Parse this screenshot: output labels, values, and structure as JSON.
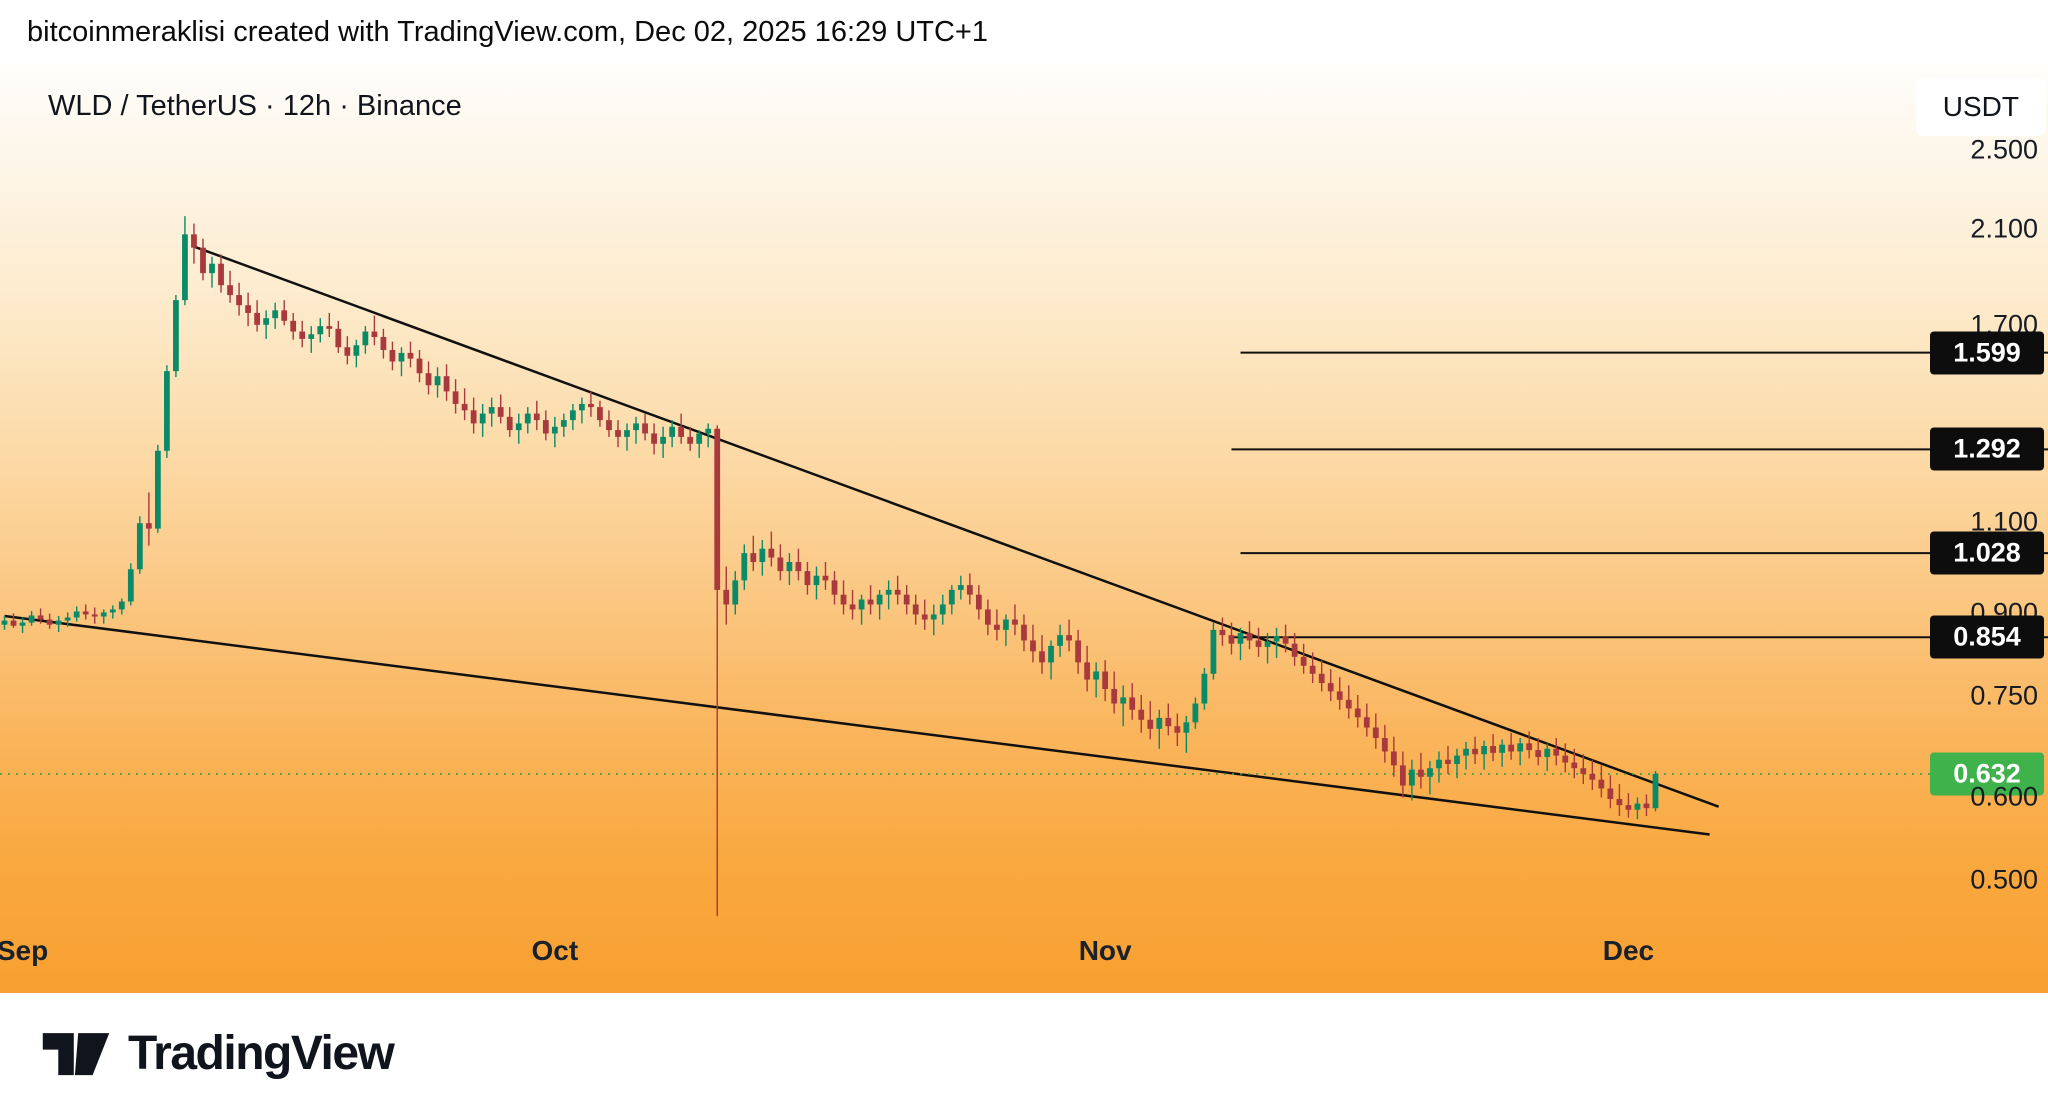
{
  "attribution": "bitcoinmeraklisi created with TradingView.com, Dec 02, 2025 16:29 UTC+1",
  "symbol_line": "WLD / TetherUS · 12h · Binance",
  "currency_button": "USDT",
  "logo_text": "TradingView",
  "colors": {
    "up": "#0b8a68",
    "down": "#a8393c",
    "line": "#111111",
    "current_line": "#3a9e46",
    "badge_bg": "#0d0d0d",
    "badge_text": "#ffffff",
    "current_badge_bg": "#3fb24b",
    "bg_top": "#fffefb",
    "bg_bottom": "#f8a031",
    "text_dark": "#10141c"
  },
  "chart_data": {
    "type": "candlestick",
    "title": "WLD / TetherUS",
    "interval": "12h",
    "exchange": "Binance",
    "quote_unit": "USDT",
    "scale": "log",
    "grid": false,
    "price_range": {
      "min": 0.39,
      "max": 3.02
    },
    "current_price": 0.632,
    "y_axis": {
      "ticks": [
        {
          "price": 2.5,
          "label": "2.500",
          "style": "plain"
        },
        {
          "price": 2.1,
          "label": "2.100",
          "style": "plain"
        },
        {
          "price": 1.7,
          "label": "1.700",
          "style": "plain"
        },
        {
          "price": 1.599,
          "label": "1.599",
          "style": "level"
        },
        {
          "price": 1.292,
          "label": "1.292",
          "style": "level"
        },
        {
          "price": 1.1,
          "label": "1.100",
          "style": "plain"
        },
        {
          "price": 1.028,
          "label": "1.028",
          "style": "level"
        },
        {
          "price": 0.9,
          "label": "0.900",
          "style": "plain"
        },
        {
          "price": 0.854,
          "label": "0.854",
          "style": "level"
        },
        {
          "price": 0.75,
          "label": "0.750",
          "style": "plain"
        },
        {
          "price": 0.632,
          "label": "0.632",
          "style": "current"
        },
        {
          "price": 0.6,
          "label": "0.600",
          "style": "plain"
        },
        {
          "price": 0.5,
          "label": "0.500",
          "style": "plain"
        }
      ]
    },
    "x_axis": {
      "ticks": [
        {
          "label": "Sep",
          "index": 2
        },
        {
          "label": "Oct",
          "index": 61
        },
        {
          "label": "Nov",
          "index": 122
        },
        {
          "label": "Dec",
          "index": 180
        }
      ]
    },
    "levels": [
      {
        "price": 1.599,
        "from_index": 137
      },
      {
        "price": 1.292,
        "from_index": 136
      },
      {
        "price": 1.028,
        "from_index": 137
      },
      {
        "price": 0.854,
        "from_index": 136
      }
    ],
    "trendlines": [
      {
        "name": "upper-wedge-line",
        "from": {
          "index": 21,
          "price": 2.02
        },
        "to": {
          "index": 190,
          "price": 0.588
        }
      },
      {
        "name": "lower-wedge-line",
        "from": {
          "index": 0,
          "price": 0.895
        },
        "to": {
          "index": 189,
          "price": 0.553
        }
      }
    ],
    "candles": [
      [
        0.878,
        0.895,
        0.868,
        0.886
      ],
      [
        0.886,
        0.9,
        0.872,
        0.876
      ],
      [
        0.876,
        0.892,
        0.862,
        0.882
      ],
      [
        0.882,
        0.905,
        0.876,
        0.896
      ],
      [
        0.896,
        0.91,
        0.88,
        0.888
      ],
      [
        0.888,
        0.9,
        0.87,
        0.878
      ],
      [
        0.878,
        0.895,
        0.864,
        0.886
      ],
      [
        0.886,
        0.902,
        0.874,
        0.892
      ],
      [
        0.892,
        0.914,
        0.884,
        0.904
      ],
      [
        0.904,
        0.918,
        0.888,
        0.898
      ],
      [
        0.898,
        0.912,
        0.88,
        0.894
      ],
      [
        0.894,
        0.908,
        0.88,
        0.902
      ],
      [
        0.902,
        0.916,
        0.89,
        0.908
      ],
      [
        0.908,
        0.93,
        0.898,
        0.924
      ],
      [
        0.924,
        1.005,
        0.916,
        0.992
      ],
      [
        0.992,
        1.115,
        0.982,
        1.098
      ],
      [
        1.098,
        1.175,
        1.045,
        1.085
      ],
      [
        1.085,
        1.305,
        1.075,
        1.288
      ],
      [
        1.288,
        1.555,
        1.268,
        1.535
      ],
      [
        1.535,
        1.815,
        1.515,
        1.795
      ],
      [
        1.795,
        2.16,
        1.775,
        2.075
      ],
      [
        2.075,
        2.125,
        1.945,
        2.015
      ],
      [
        2.015,
        2.055,
        1.875,
        1.905
      ],
      [
        1.905,
        1.975,
        1.845,
        1.945
      ],
      [
        1.945,
        1.985,
        1.825,
        1.855
      ],
      [
        1.855,
        1.915,
        1.785,
        1.815
      ],
      [
        1.815,
        1.865,
        1.735,
        1.775
      ],
      [
        1.775,
        1.825,
        1.695,
        1.745
      ],
      [
        1.745,
        1.795,
        1.675,
        1.7
      ],
      [
        1.7,
        1.755,
        1.648,
        1.725
      ],
      [
        1.725,
        1.785,
        1.685,
        1.755
      ],
      [
        1.755,
        1.795,
        1.698,
        1.715
      ],
      [
        1.715,
        1.745,
        1.645,
        1.675
      ],
      [
        1.675,
        1.715,
        1.618,
        1.648
      ],
      [
        1.648,
        1.695,
        1.598,
        1.665
      ],
      [
        1.665,
        1.725,
        1.635,
        1.695
      ],
      [
        1.695,
        1.745,
        1.655,
        1.685
      ],
      [
        1.685,
        1.715,
        1.598,
        1.618
      ],
      [
        1.618,
        1.658,
        1.558,
        1.588
      ],
      [
        1.588,
        1.645,
        1.548,
        1.625
      ],
      [
        1.625,
        1.695,
        1.595,
        1.675
      ],
      [
        1.675,
        1.735,
        1.625,
        1.655
      ],
      [
        1.655,
        1.685,
        1.578,
        1.608
      ],
      [
        1.608,
        1.638,
        1.538,
        1.568
      ],
      [
        1.568,
        1.618,
        1.518,
        1.598
      ],
      [
        1.598,
        1.638,
        1.548,
        1.578
      ],
      [
        1.578,
        1.608,
        1.498,
        1.528
      ],
      [
        1.528,
        1.568,
        1.458,
        1.488
      ],
      [
        1.488,
        1.548,
        1.448,
        1.518
      ],
      [
        1.518,
        1.558,
        1.438,
        1.468
      ],
      [
        1.468,
        1.508,
        1.398,
        1.428
      ],
      [
        1.428,
        1.478,
        1.378,
        1.408
      ],
      [
        1.408,
        1.448,
        1.338,
        1.368
      ],
      [
        1.368,
        1.428,
        1.328,
        1.398
      ],
      [
        1.398,
        1.448,
        1.358,
        1.418
      ],
      [
        1.418,
        1.458,
        1.368,
        1.388
      ],
      [
        1.388,
        1.418,
        1.328,
        1.348
      ],
      [
        1.348,
        1.398,
        1.308,
        1.368
      ],
      [
        1.368,
        1.418,
        1.338,
        1.398
      ],
      [
        1.398,
        1.438,
        1.348,
        1.378
      ],
      [
        1.378,
        1.408,
        1.318,
        1.338
      ],
      [
        1.338,
        1.388,
        1.298,
        1.358
      ],
      [
        1.358,
        1.398,
        1.328,
        1.378
      ],
      [
        1.378,
        1.428,
        1.348,
        1.408
      ],
      [
        1.408,
        1.448,
        1.368,
        1.428
      ],
      [
        1.428,
        1.468,
        1.388,
        1.418
      ],
      [
        1.418,
        1.438,
        1.358,
        1.378
      ],
      [
        1.378,
        1.408,
        1.328,
        1.348
      ],
      [
        1.348,
        1.378,
        1.298,
        1.328
      ],
      [
        1.328,
        1.368,
        1.288,
        1.348
      ],
      [
        1.348,
        1.388,
        1.308,
        1.368
      ],
      [
        1.368,
        1.398,
        1.318,
        1.338
      ],
      [
        1.338,
        1.368,
        1.278,
        1.308
      ],
      [
        1.308,
        1.358,
        1.268,
        1.328
      ],
      [
        1.328,
        1.378,
        1.298,
        1.358
      ],
      [
        1.358,
        1.398,
        1.308,
        1.328
      ],
      [
        1.328,
        1.358,
        1.288,
        1.308
      ],
      [
        1.308,
        1.348,
        1.268,
        1.338
      ],
      [
        1.338,
        1.368,
        1.298,
        1.352
      ],
      [
        1.352,
        1.362,
        0.462,
        0.948
      ],
      [
        0.948,
        0.998,
        0.878,
        0.918
      ],
      [
        0.918,
        0.988,
        0.898,
        0.968
      ],
      [
        0.968,
        1.048,
        0.948,
        1.028
      ],
      [
        1.028,
        1.068,
        0.988,
        1.008
      ],
      [
        1.008,
        1.058,
        0.978,
        1.038
      ],
      [
        1.038,
        1.078,
        0.998,
        1.018
      ],
      [
        1.018,
        1.048,
        0.968,
        0.988
      ],
      [
        0.988,
        1.028,
        0.958,
        1.008
      ],
      [
        1.008,
        1.038,
        0.968,
        0.988
      ],
      [
        0.988,
        1.008,
        0.938,
        0.958
      ],
      [
        0.958,
        0.998,
        0.928,
        0.978
      ],
      [
        0.978,
        1.008,
        0.948,
        0.968
      ],
      [
        0.968,
        0.988,
        0.918,
        0.938
      ],
      [
        0.938,
        0.968,
        0.898,
        0.918
      ],
      [
        0.918,
        0.948,
        0.888,
        0.908
      ],
      [
        0.908,
        0.938,
        0.878,
        0.928
      ],
      [
        0.928,
        0.958,
        0.898,
        0.918
      ],
      [
        0.918,
        0.948,
        0.888,
        0.938
      ],
      [
        0.938,
        0.968,
        0.908,
        0.948
      ],
      [
        0.948,
        0.978,
        0.918,
        0.938
      ],
      [
        0.938,
        0.958,
        0.898,
        0.918
      ],
      [
        0.918,
        0.938,
        0.878,
        0.898
      ],
      [
        0.898,
        0.928,
        0.868,
        0.888
      ],
      [
        0.888,
        0.918,
        0.858,
        0.898
      ],
      [
        0.898,
        0.938,
        0.878,
        0.918
      ],
      [
        0.918,
        0.958,
        0.898,
        0.948
      ],
      [
        0.948,
        0.978,
        0.928,
        0.958
      ],
      [
        0.958,
        0.983,
        0.918,
        0.938
      ],
      [
        0.938,
        0.958,
        0.888,
        0.908
      ],
      [
        0.908,
        0.928,
        0.858,
        0.878
      ],
      [
        0.878,
        0.908,
        0.848,
        0.868
      ],
      [
        0.868,
        0.898,
        0.838,
        0.888
      ],
      [
        0.888,
        0.918,
        0.858,
        0.878
      ],
      [
        0.878,
        0.898,
        0.828,
        0.848
      ],
      [
        0.848,
        0.878,
        0.808,
        0.828
      ],
      [
        0.828,
        0.858,
        0.788,
        0.808
      ],
      [
        0.808,
        0.848,
        0.778,
        0.838
      ],
      [
        0.838,
        0.878,
        0.818,
        0.858
      ],
      [
        0.858,
        0.888,
        0.828,
        0.848
      ],
      [
        0.848,
        0.868,
        0.788,
        0.808
      ],
      [
        0.808,
        0.838,
        0.758,
        0.778
      ],
      [
        0.778,
        0.808,
        0.748,
        0.792
      ],
      [
        0.792,
        0.812,
        0.742,
        0.762
      ],
      [
        0.762,
        0.792,
        0.722,
        0.738
      ],
      [
        0.738,
        0.768,
        0.702,
        0.748
      ],
      [
        0.748,
        0.772,
        0.712,
        0.728
      ],
      [
        0.728,
        0.752,
        0.692,
        0.712
      ],
      [
        0.712,
        0.742,
        0.682,
        0.698
      ],
      [
        0.698,
        0.728,
        0.668,
        0.715
      ],
      [
        0.715,
        0.738,
        0.688,
        0.702
      ],
      [
        0.702,
        0.722,
        0.672,
        0.692
      ],
      [
        0.692,
        0.718,
        0.662,
        0.708
      ],
      [
        0.708,
        0.748,
        0.698,
        0.738
      ],
      [
        0.738,
        0.798,
        0.728,
        0.788
      ],
      [
        0.788,
        0.882,
        0.778,
        0.868
      ],
      [
        0.868,
        0.892,
        0.838,
        0.858
      ],
      [
        0.858,
        0.882,
        0.822,
        0.842
      ],
      [
        0.842,
        0.872,
        0.812,
        0.862
      ],
      [
        0.862,
        0.885,
        0.832,
        0.848
      ],
      [
        0.848,
        0.872,
        0.818,
        0.836
      ],
      [
        0.836,
        0.862,
        0.806,
        0.846
      ],
      [
        0.846,
        0.872,
        0.816,
        0.856
      ],
      [
        0.856,
        0.878,
        0.826,
        0.842
      ],
      [
        0.842,
        0.862,
        0.802,
        0.818
      ],
      [
        0.818,
        0.842,
        0.788,
        0.802
      ],
      [
        0.802,
        0.826,
        0.772,
        0.788
      ],
      [
        0.788,
        0.812,
        0.758,
        0.772
      ],
      [
        0.772,
        0.796,
        0.742,
        0.758
      ],
      [
        0.758,
        0.782,
        0.728,
        0.744
      ],
      [
        0.744,
        0.768,
        0.714,
        0.73
      ],
      [
        0.73,
        0.752,
        0.7,
        0.716
      ],
      [
        0.716,
        0.738,
        0.686,
        0.7
      ],
      [
        0.7,
        0.722,
        0.668,
        0.684
      ],
      [
        0.684,
        0.704,
        0.648,
        0.664
      ],
      [
        0.664,
        0.686,
        0.628,
        0.644
      ],
      [
        0.644,
        0.664,
        0.6,
        0.616
      ],
      [
        0.616,
        0.652,
        0.596,
        0.638
      ],
      [
        0.638,
        0.662,
        0.612,
        0.628
      ],
      [
        0.628,
        0.65,
        0.604,
        0.64
      ],
      [
        0.64,
        0.664,
        0.62,
        0.652
      ],
      [
        0.652,
        0.672,
        0.632,
        0.646
      ],
      [
        0.646,
        0.668,
        0.626,
        0.658
      ],
      [
        0.658,
        0.678,
        0.638,
        0.668
      ],
      [
        0.668,
        0.686,
        0.646,
        0.66
      ],
      [
        0.66,
        0.68,
        0.638,
        0.672
      ],
      [
        0.672,
        0.69,
        0.65,
        0.662
      ],
      [
        0.662,
        0.682,
        0.642,
        0.674
      ],
      [
        0.674,
        0.692,
        0.652,
        0.664
      ],
      [
        0.664,
        0.684,
        0.644,
        0.676
      ],
      [
        0.676,
        0.694,
        0.654,
        0.666
      ],
      [
        0.666,
        0.684,
        0.644,
        0.656
      ],
      [
        0.656,
        0.676,
        0.636,
        0.668
      ],
      [
        0.668,
        0.684,
        0.644,
        0.658
      ],
      [
        0.658,
        0.676,
        0.634,
        0.648
      ],
      [
        0.648,
        0.668,
        0.626,
        0.64
      ],
      [
        0.64,
        0.66,
        0.618,
        0.632
      ],
      [
        0.632,
        0.652,
        0.61,
        0.624
      ],
      [
        0.624,
        0.644,
        0.6,
        0.612
      ],
      [
        0.612,
        0.63,
        0.586,
        0.598
      ],
      [
        0.598,
        0.618,
        0.576,
        0.59
      ],
      [
        0.59,
        0.606,
        0.574,
        0.584
      ],
      [
        0.584,
        0.6,
        0.572,
        0.592
      ],
      [
        0.592,
        0.604,
        0.576,
        0.586
      ],
      [
        0.586,
        0.636,
        0.582,
        0.632
      ]
    ]
  }
}
